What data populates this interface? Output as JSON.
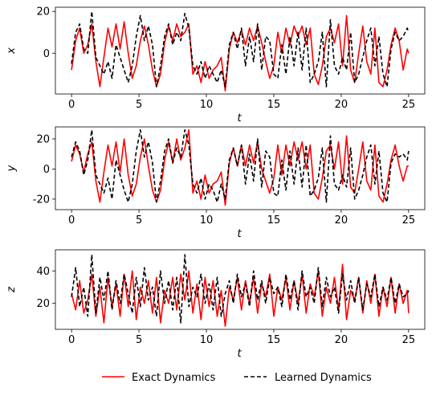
{
  "chart_data": [
    {
      "type": "line",
      "xlabel": "t",
      "ylabel": "x",
      "xlim": [
        -1.2,
        26.2
      ],
      "ylim": [
        -19.5,
        22
      ],
      "xticks": [
        0,
        5,
        10,
        15,
        20,
        25
      ],
      "yticks": [
        0,
        20
      ],
      "series": [
        {
          "name": "Exact Dynamics",
          "color": "#ff0000",
          "style": "solid",
          "x": [
            0,
            0.3,
            0.6,
            0.9,
            1.2,
            1.5,
            1.8,
            2.1,
            2.4,
            2.7,
            3.0,
            3.3,
            3.6,
            3.9,
            4.2,
            4.5,
            4.8,
            5.1,
            5.4,
            5.7,
            6.0,
            6.3,
            6.6,
            6.9,
            7.2,
            7.5,
            7.8,
            8.1,
            8.4,
            8.7,
            9.0,
            9.3,
            9.6,
            9.9,
            10.2,
            10.5,
            10.8,
            11.1,
            11.4,
            11.7,
            12.0,
            12.3,
            12.6,
            12.9,
            13.2,
            13.5,
            13.8,
            14.1,
            14.4,
            14.7,
            15.0,
            15.3,
            15.6,
            15.9,
            16.2,
            16.5,
            16.8,
            17.1,
            17.4,
            17.7,
            18.0,
            18.3,
            18.6,
            18.9,
            19.2,
            19.5,
            19.8,
            20.1,
            20.4,
            20.7,
            21.0,
            21.3,
            21.6,
            21.9,
            22.2,
            22.5,
            22.8,
            23.1,
            23.4,
            23.7,
            24.0,
            24.3,
            24.6,
            24.9,
            25.0
          ],
          "y": [
            -8,
            6,
            12,
            0,
            4,
            14,
            -4,
            -16,
            -2,
            12,
            3,
            14,
            2,
            15,
            0,
            -12,
            -6,
            6,
            13,
            4,
            -8,
            -16,
            -10,
            5,
            13,
            6,
            14,
            8,
            10,
            14,
            -10,
            -6,
            -14,
            -4,
            -12,
            -8,
            -6,
            -2,
            -18,
            2,
            10,
            5,
            11,
            4,
            12,
            6,
            13,
            5,
            -4,
            -12,
            -6,
            10,
            0,
            12,
            4,
            13,
            8,
            13,
            4,
            12,
            -10,
            -15,
            -6,
            8,
            12,
            5,
            14,
            -6,
            18,
            -8,
            -14,
            0,
            13,
            -4,
            -10,
            12,
            -14,
            -16,
            -8,
            4,
            12,
            6,
            -8,
            2,
            0
          ]
        },
        {
          "name": "Learned Dynamics",
          "color": "#000000",
          "style": "dashed",
          "x": [
            0,
            0.3,
            0.6,
            0.9,
            1.2,
            1.5,
            1.8,
            2.1,
            2.4,
            2.7,
            3.0,
            3.3,
            3.6,
            3.9,
            4.2,
            4.5,
            4.8,
            5.1,
            5.4,
            5.7,
            6.0,
            6.3,
            6.6,
            6.9,
            7.2,
            7.5,
            7.8,
            8.1,
            8.4,
            8.7,
            9.0,
            9.3,
            9.6,
            9.9,
            10.2,
            10.5,
            10.8,
            11.1,
            11.4,
            11.7,
            12.0,
            12.3,
            12.6,
            12.9,
            13.2,
            13.5,
            13.8,
            14.1,
            14.4,
            14.7,
            15.0,
            15.3,
            15.6,
            15.9,
            16.2,
            16.5,
            16.8,
            17.1,
            17.4,
            17.7,
            18.0,
            18.3,
            18.6,
            18.9,
            19.2,
            19.5,
            19.8,
            20.1,
            20.4,
            20.7,
            21.0,
            21.3,
            21.6,
            21.9,
            22.2,
            22.5,
            22.8,
            23.1,
            23.4,
            23.7,
            24.0,
            24.3,
            24.6,
            24.9,
            25.0
          ],
          "y": [
            -5,
            10,
            14,
            2,
            0,
            20,
            -2,
            -6,
            -10,
            -4,
            -12,
            4,
            -2,
            -8,
            -14,
            -6,
            8,
            18,
            6,
            13,
            4,
            -16,
            -6,
            8,
            14,
            4,
            10,
            6,
            19,
            12,
            -6,
            -10,
            -4,
            -12,
            -6,
            -10,
            -14,
            -8,
            -16,
            4,
            10,
            2,
            12,
            -6,
            8,
            -4,
            14,
            -8,
            8,
            6,
            -10,
            -12,
            4,
            -10,
            8,
            -6,
            10,
            -8,
            12,
            -14,
            -10,
            -4,
            10,
            -16,
            16,
            -6,
            -10,
            -2,
            -8,
            10,
            -14,
            -10,
            -2,
            6,
            12,
            -6,
            8,
            -10,
            -16,
            2,
            10,
            6,
            8,
            12,
            10
          ]
        }
      ]
    },
    {
      "type": "line",
      "xlabel": "t",
      "ylabel": "y",
      "xlim": [
        -1.2,
        26.2
      ],
      "ylim": [
        -27,
        28
      ],
      "xticks": [
        0,
        5,
        10,
        15,
        20,
        25
      ],
      "yticks": [
        -20,
        0,
        20
      ],
      "series": [
        {
          "name": "Exact Dynamics",
          "color": "#ff0000",
          "style": "solid",
          "x": [
            0,
            0.3,
            0.6,
            0.9,
            1.2,
            1.5,
            1.8,
            2.1,
            2.4,
            2.7,
            3.0,
            3.3,
            3.6,
            3.9,
            4.2,
            4.5,
            4.8,
            5.1,
            5.4,
            5.7,
            6.0,
            6.3,
            6.6,
            6.9,
            7.2,
            7.5,
            7.8,
            8.1,
            8.4,
            8.7,
            9.0,
            9.3,
            9.6,
            9.9,
            10.2,
            10.5,
            10.8,
            11.1,
            11.4,
            11.7,
            12.0,
            12.3,
            12.6,
            12.9,
            13.2,
            13.5,
            13.8,
            14.1,
            14.4,
            14.7,
            15.0,
            15.3,
            15.6,
            15.9,
            16.2,
            16.5,
            16.8,
            17.1,
            17.4,
            17.7,
            18.0,
            18.3,
            18.6,
            18.9,
            19.2,
            19.5,
            19.8,
            20.1,
            20.4,
            20.7,
            21.0,
            21.3,
            21.6,
            21.9,
            22.2,
            22.5,
            22.8,
            23.1,
            23.4,
            23.7,
            24.0,
            24.3,
            24.6,
            24.9,
            25.0
          ],
          "y": [
            5,
            16,
            10,
            -2,
            10,
            18,
            -8,
            -22,
            -2,
            16,
            2,
            18,
            -2,
            20,
            -4,
            -18,
            -10,
            8,
            20,
            2,
            -14,
            -22,
            -14,
            6,
            18,
            4,
            20,
            6,
            14,
            26,
            -16,
            -8,
            -20,
            -4,
            -16,
            -10,
            -8,
            -2,
            -24,
            4,
            14,
            2,
            16,
            2,
            16,
            4,
            18,
            0,
            -8,
            -16,
            -6,
            16,
            -4,
            16,
            2,
            18,
            6,
            18,
            0,
            16,
            -16,
            -20,
            -6,
            12,
            16,
            0,
            18,
            -10,
            22,
            -12,
            -16,
            0,
            18,
            -8,
            -14,
            16,
            -18,
            -22,
            -10,
            6,
            16,
            2,
            -8,
            2,
            2
          ]
        },
        {
          "name": "Learned Dynamics",
          "color": "#000000",
          "style": "dashed",
          "x": [
            0,
            0.3,
            0.6,
            0.9,
            1.2,
            1.5,
            1.8,
            2.1,
            2.4,
            2.7,
            3.0,
            3.3,
            3.6,
            3.9,
            4.2,
            4.5,
            4.8,
            5.1,
            5.4,
            5.7,
            6.0,
            6.3,
            6.6,
            6.9,
            7.2,
            7.5,
            7.8,
            8.1,
            8.4,
            8.7,
            9.0,
            9.3,
            9.6,
            9.9,
            10.2,
            10.5,
            10.8,
            11.1,
            11.4,
            11.7,
            12.0,
            12.3,
            12.6,
            12.9,
            13.2,
            13.5,
            13.8,
            14.1,
            14.4,
            14.7,
            15.0,
            15.3,
            15.6,
            15.9,
            16.2,
            16.5,
            16.8,
            17.1,
            17.4,
            17.7,
            18.0,
            18.3,
            18.6,
            18.9,
            19.2,
            19.5,
            19.8,
            20.1,
            20.4,
            20.7,
            21.0,
            21.3,
            21.6,
            21.9,
            22.2,
            22.5,
            22.8,
            23.1,
            23.4,
            23.7,
            24.0,
            24.3,
            24.6,
            24.9,
            25.0
          ],
          "y": [
            8,
            18,
            12,
            -4,
            6,
            26,
            -4,
            -10,
            -16,
            -6,
            -20,
            6,
            -4,
            -14,
            -22,
            -10,
            12,
            26,
            8,
            18,
            4,
            -22,
            -8,
            12,
            20,
            4,
            14,
            8,
            26,
            16,
            -10,
            -16,
            -6,
            -20,
            -10,
            -14,
            -22,
            -10,
            -20,
            6,
            14,
            2,
            16,
            -10,
            10,
            -8,
            20,
            -12,
            12,
            8,
            -16,
            -18,
            6,
            -14,
            12,
            -10,
            14,
            -12,
            16,
            -18,
            -14,
            -6,
            14,
            -22,
            22,
            -10,
            -14,
            -4,
            -12,
            14,
            -20,
            -14,
            -4,
            8,
            16,
            -10,
            12,
            -16,
            -22,
            4,
            10,
            8,
            10,
            6,
            12
          ]
        }
      ]
    },
    {
      "type": "line",
      "xlabel": "t",
      "ylabel": "z",
      "xlim": [
        -1.2,
        26.2
      ],
      "ylim": [
        4,
        53
      ],
      "xticks": [
        0,
        5,
        10,
        15,
        20,
        25
      ],
      "yticks": [
        20,
        40
      ],
      "series": [
        {
          "name": "Exact Dynamics",
          "color": "#ff0000",
          "style": "solid",
          "x": [
            0,
            0.3,
            0.6,
            0.9,
            1.2,
            1.5,
            1.8,
            2.1,
            2.4,
            2.7,
            3.0,
            3.3,
            3.6,
            3.9,
            4.2,
            4.5,
            4.8,
            5.1,
            5.4,
            5.7,
            6.0,
            6.3,
            6.6,
            6.9,
            7.2,
            7.5,
            7.8,
            8.1,
            8.4,
            8.7,
            9.0,
            9.3,
            9.6,
            9.9,
            10.2,
            10.5,
            10.8,
            11.1,
            11.4,
            11.7,
            12.0,
            12.3,
            12.6,
            12.9,
            13.2,
            13.5,
            13.8,
            14.1,
            14.4,
            14.7,
            15.0,
            15.3,
            15.6,
            15.9,
            16.2,
            16.5,
            16.8,
            17.1,
            17.4,
            17.7,
            18.0,
            18.3,
            18.6,
            18.9,
            19.2,
            19.5,
            19.8,
            20.1,
            20.4,
            20.7,
            21.0,
            21.3,
            21.6,
            21.9,
            22.2,
            22.5,
            22.8,
            23.1,
            23.4,
            23.7,
            24.0,
            24.3,
            24.6,
            24.9,
            25.0
          ],
          "y": [
            26,
            16,
            34,
            14,
            22,
            38,
            12,
            30,
            8,
            36,
            18,
            32,
            12,
            38,
            18,
            40,
            10,
            30,
            20,
            34,
            14,
            36,
            8,
            28,
            20,
            36,
            16,
            38,
            22,
            40,
            14,
            32,
            10,
            36,
            18,
            34,
            12,
            28,
            6,
            30,
            22,
            36,
            16,
            34,
            20,
            36,
            14,
            32,
            24,
            38,
            12,
            30,
            22,
            36,
            16,
            34,
            20,
            38,
            14,
            32,
            24,
            40,
            12,
            30,
            20,
            36,
            16,
            44,
            10,
            28,
            22,
            36,
            14,
            34,
            20,
            38,
            12,
            30,
            18,
            36,
            14,
            32,
            20,
            28,
            14
          ]
        },
        {
          "name": "Learned Dynamics",
          "color": "#000000",
          "style": "dashed",
          "x": [
            0,
            0.3,
            0.6,
            0.9,
            1.2,
            1.5,
            1.8,
            2.1,
            2.4,
            2.7,
            3.0,
            3.3,
            3.6,
            3.9,
            4.2,
            4.5,
            4.8,
            5.1,
            5.4,
            5.7,
            6.0,
            6.3,
            6.6,
            6.9,
            7.2,
            7.5,
            7.8,
            8.1,
            8.4,
            8.7,
            9.0,
            9.3,
            9.6,
            9.9,
            10.2,
            10.5,
            10.8,
            11.1,
            11.4,
            11.7,
            12.0,
            12.3,
            12.6,
            12.9,
            13.2,
            13.5,
            13.8,
            14.1,
            14.4,
            14.7,
            15.0,
            15.3,
            15.6,
            15.9,
            16.2,
            16.5,
            16.8,
            17.1,
            17.4,
            17.7,
            18.0,
            18.3,
            18.6,
            18.9,
            19.2,
            19.5,
            19.8,
            20.1,
            20.4,
            20.7,
            21.0,
            21.3,
            21.6,
            21.9,
            22.2,
            22.5,
            22.8,
            23.1,
            23.4,
            23.7,
            24.0,
            24.3,
            24.6,
            24.9,
            25.0
          ],
          "y": [
            24,
            42,
            18,
            30,
            12,
            50,
            14,
            36,
            22,
            40,
            16,
            34,
            20,
            38,
            26,
            14,
            36,
            18,
            42,
            22,
            30,
            12,
            40,
            20,
            34,
            16,
            36,
            8,
            50,
            18,
            30,
            24,
            38,
            20,
            32,
            16,
            36,
            12,
            26,
            34,
            20,
            38,
            24,
            32,
            18,
            40,
            22,
            34,
            20,
            36,
            26,
            30,
            18,
            38,
            22,
            34,
            16,
            40,
            24,
            30,
            20,
            42,
            18,
            36,
            24,
            30,
            14,
            38,
            22,
            34,
            20,
            36,
            16,
            32,
            24,
            38,
            18,
            30,
            22,
            36,
            20,
            32,
            24,
            26,
            28
          ]
        }
      ]
    }
  ],
  "legend": {
    "entries": [
      {
        "label": "Exact Dynamics",
        "color": "#ff0000",
        "style": "solid"
      },
      {
        "label": "Learned Dynamics",
        "color": "#000000",
        "style": "dashed"
      }
    ]
  }
}
